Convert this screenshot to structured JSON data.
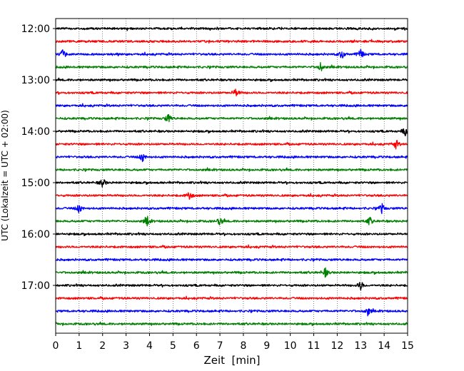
{
  "chart_data": {
    "type": "seismogram",
    "xlabel": "Zeit  [min]",
    "ylabel": "UTC (Lokalzeit = UTC + 02:00)",
    "xlim": [
      0,
      15
    ],
    "x_ticks": [
      0,
      1,
      2,
      3,
      4,
      5,
      6,
      7,
      8,
      9,
      10,
      11,
      12,
      13,
      14,
      15
    ],
    "x_grid": "dotted vertical lines at each minute",
    "y_tick_labels": [
      "12:00",
      "13:00",
      "14:00",
      "15:00",
      "16:00",
      "17:00"
    ],
    "trace_interval_minutes": 15,
    "color_cycle": [
      "#000000",
      "#ff0000",
      "#0000ff",
      "#008000"
    ],
    "traces": [
      {
        "start": "12:00",
        "color": "#000000"
      },
      {
        "start": "12:15",
        "color": "#ff0000"
      },
      {
        "start": "12:30",
        "color": "#0000ff",
        "bursts_min": [
          0.3,
          12.2,
          13.0
        ]
      },
      {
        "start": "12:45",
        "color": "#008000",
        "bursts_min": [
          11.3
        ]
      },
      {
        "start": "13:00",
        "color": "#000000"
      },
      {
        "start": "13:15",
        "color": "#ff0000",
        "bursts_min": [
          7.7
        ]
      },
      {
        "start": "13:30",
        "color": "#0000ff"
      },
      {
        "start": "13:45",
        "color": "#008000",
        "bursts_min": [
          4.8
        ]
      },
      {
        "start": "14:00",
        "color": "#000000",
        "bursts_min": [
          14.9
        ]
      },
      {
        "start": "14:15",
        "color": "#ff0000",
        "bursts_min": [
          14.5
        ]
      },
      {
        "start": "14:30",
        "color": "#0000ff",
        "bursts_min": [
          3.7
        ]
      },
      {
        "start": "14:45",
        "color": "#008000"
      },
      {
        "start": "15:00",
        "color": "#000000",
        "bursts_min": [
          2.0
        ]
      },
      {
        "start": "15:15",
        "color": "#ff0000",
        "bursts_min": [
          5.7
        ]
      },
      {
        "start": "15:30",
        "color": "#0000ff",
        "bursts_min": [
          1.0,
          13.9
        ]
      },
      {
        "start": "15:45",
        "color": "#008000",
        "bursts_min": [
          3.9,
          7.0,
          13.4
        ]
      },
      {
        "start": "16:00",
        "color": "#000000"
      },
      {
        "start": "16:15",
        "color": "#ff0000"
      },
      {
        "start": "16:30",
        "color": "#0000ff"
      },
      {
        "start": "16:45",
        "color": "#008000",
        "bursts_min": [
          11.5
        ]
      },
      {
        "start": "17:00",
        "color": "#000000",
        "bursts_min": [
          13.0
        ]
      },
      {
        "start": "17:15",
        "color": "#ff0000"
      },
      {
        "start": "17:30",
        "color": "#0000ff",
        "bursts_min": [
          13.3
        ]
      },
      {
        "start": "17:45",
        "color": "#008000"
      }
    ]
  }
}
